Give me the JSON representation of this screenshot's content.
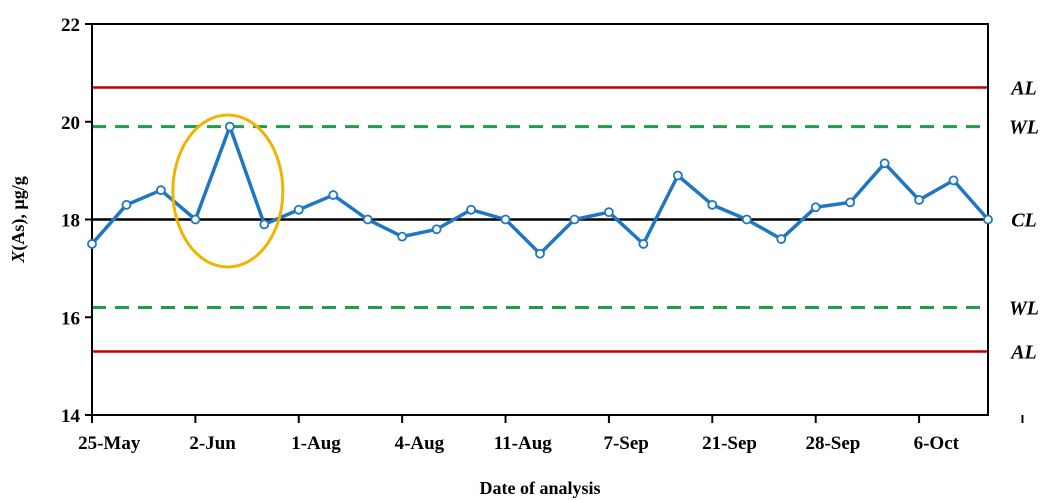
{
  "chart_data": {
    "type": "line",
    "ylabel_italic": "X",
    "ylabel_rest": "(As), µg/g",
    "xlabel": "Date of analysis",
    "ylim": [
      14,
      22
    ],
    "yticks": [
      14,
      16,
      18,
      20,
      22
    ],
    "xtick_labels": [
      "25-May",
      "2-Jun",
      "1-Aug",
      "4-Aug",
      "11-Aug",
      "7-Sep",
      "21-Sep",
      "28-Sep",
      "6-Oct"
    ],
    "grid": false,
    "series": [
      {
        "values": [
          17.5,
          18.3,
          18.6,
          18.0,
          19.9,
          17.9,
          18.2,
          18.5,
          18.0,
          17.65,
          17.8,
          18.2,
          18.0,
          17.3,
          18.0,
          18.15,
          17.5,
          18.9,
          18.3,
          18.0,
          17.6,
          18.25,
          18.35,
          19.15,
          18.4,
          18.8,
          18.0
        ],
        "color": "#1F77C4"
      }
    ],
    "limit_lines": [
      {
        "label": "AL",
        "value": 20.7,
        "color": "#C00000",
        "style": "solid"
      },
      {
        "label": "WL",
        "value": 19.9,
        "color": "#1E9E4A",
        "style": "dashed"
      },
      {
        "label": "CL",
        "value": 18.0,
        "color": "#000000",
        "style": "solid"
      },
      {
        "label": "WL",
        "value": 16.2,
        "color": "#1E9E4A",
        "style": "dashed"
      },
      {
        "label": "AL",
        "value": 15.3,
        "color": "#C00000",
        "style": "solid"
      }
    ],
    "annotations": [
      {
        "type": "ellipse",
        "around_point_index": 4,
        "color": "#F0B400"
      }
    ]
  }
}
